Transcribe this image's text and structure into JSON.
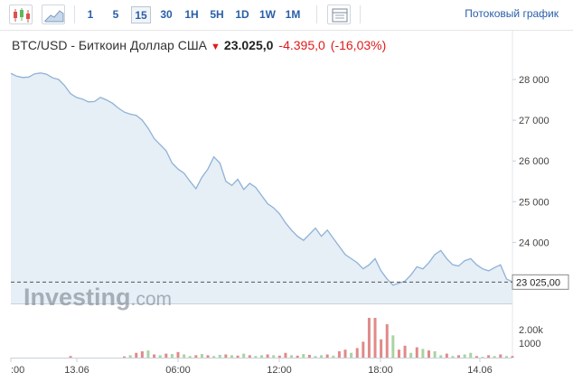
{
  "toolbar": {
    "periods": [
      "1",
      "5",
      "15",
      "30",
      "1H",
      "5H",
      "1D",
      "1W",
      "1M"
    ],
    "active_period": "15",
    "stream_label": "Потоковый график"
  },
  "header": {
    "name": "BTC/USD - Биткоин Доллар США",
    "last": "23.025,0",
    "change": "-4.395,0",
    "change_pct": "(-16,03%)"
  },
  "colors": {
    "line": "#8fb2d6",
    "area": "#e6eef6",
    "vol_up": "#a9d3a3",
    "vol_down": "#e08a8a",
    "accent": "#2a5ea8"
  },
  "watermark": "Investing.com",
  "chart_data": {
    "type": "area",
    "ylim": [
      22500,
      28400
    ],
    "yticks": [
      "28 000",
      "27 000",
      "26 000",
      "25 000",
      "24 000"
    ],
    "ytick_values": [
      28000,
      27000,
      26000,
      25000,
      24000
    ],
    "last_value": 23025,
    "last_label": "23 025,00",
    "xtick_labels": [
      ":00",
      "13.06",
      "06:00",
      "12:00",
      "18:00",
      "14.06"
    ],
    "volume_ticks": [
      "2.00k",
      "1000"
    ],
    "values": [
      28150,
      28080,
      28050,
      28060,
      28140,
      28160,
      28130,
      28040,
      28000,
      27850,
      27650,
      27560,
      27520,
      27450,
      27460,
      27560,
      27500,
      27420,
      27300,
      27200,
      27150,
      27120,
      27000,
      26800,
      26550,
      26400,
      26250,
      25950,
      25800,
      25700,
      25500,
      25320,
      25600,
      25800,
      26100,
      25950,
      25500,
      25400,
      25550,
      25300,
      25450,
      25350,
      25150,
      24950,
      24850,
      24700,
      24480,
      24300,
      24150,
      24050,
      24200,
      24350,
      24150,
      24300,
      24100,
      23900,
      23700,
      23600,
      23500,
      23350,
      23450,
      23600,
      23300,
      23100,
      22950,
      23000,
      23050,
      23200,
      23400,
      23350,
      23500,
      23700,
      23800,
      23600,
      23450,
      23420,
      23550,
      23600,
      23450,
      23350,
      23300,
      23380,
      23450,
      23100,
      23030
    ],
    "volume": [
      0,
      0,
      0,
      0,
      0,
      0,
      0,
      0,
      0,
      0,
      20,
      0,
      0,
      0,
      0,
      0,
      0,
      0,
      0,
      15,
      30,
      60,
      80,
      90,
      40,
      30,
      50,
      45,
      70,
      40,
      20,
      30,
      45,
      30,
      20,
      35,
      40,
      30,
      25,
      50,
      30,
      20,
      30,
      40,
      30,
      25,
      60,
      30,
      25,
      45,
      35,
      20,
      30,
      40,
      25,
      80,
      100,
      60,
      120,
      200,
      500,
      500,
      230,
      420,
      280,
      100,
      150,
      60,
      130,
      110,
      90,
      80,
      30,
      50,
      20,
      30,
      40,
      60,
      20,
      10,
      30,
      20,
      40,
      20,
      20
    ],
    "volume_dir": [
      "u",
      "u",
      "u",
      "u",
      "u",
      "u",
      "u",
      "u",
      "u",
      "u",
      "d",
      "u",
      "u",
      "u",
      "u",
      "u",
      "u",
      "u",
      "u",
      "d",
      "u",
      "d",
      "d",
      "u",
      "d",
      "u",
      "d",
      "u",
      "d",
      "u",
      "u",
      "d",
      "u",
      "d",
      "u",
      "u",
      "d",
      "u",
      "d",
      "u",
      "d",
      "u",
      "u",
      "d",
      "u",
      "d",
      "d",
      "u",
      "d",
      "u",
      "d",
      "u",
      "u",
      "d",
      "u",
      "d",
      "d",
      "u",
      "d",
      "d",
      "d",
      "d",
      "d",
      "d",
      "u",
      "d",
      "d",
      "u",
      "d",
      "u",
      "d",
      "u",
      "u",
      "d",
      "u",
      "d",
      "u",
      "u",
      "d",
      "u",
      "d",
      "u",
      "d",
      "u",
      "d"
    ]
  }
}
